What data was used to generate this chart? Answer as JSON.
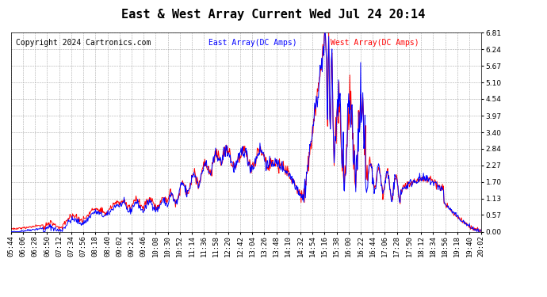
{
  "title": "East & West Array Current Wed Jul 24 20:14",
  "copyright": "Copyright 2024 Cartronics.com",
  "legend_east": "East Array(DC Amps)",
  "legend_west": "West Array(DC Amps)",
  "east_color": "blue",
  "west_color": "red",
  "bg_color": "#ffffff",
  "grid_color": "#aaaaaa",
  "ylim": [
    0.0,
    6.81
  ],
  "yticks": [
    0.0,
    0.57,
    1.13,
    1.7,
    2.27,
    2.84,
    3.4,
    3.97,
    4.54,
    5.1,
    5.67,
    6.24,
    6.81
  ],
  "xtick_labels": [
    "05:44",
    "06:06",
    "06:28",
    "06:50",
    "07:12",
    "07:34",
    "07:56",
    "08:18",
    "08:40",
    "09:02",
    "09:24",
    "09:46",
    "10:08",
    "10:30",
    "10:52",
    "11:14",
    "11:36",
    "11:58",
    "12:20",
    "12:42",
    "13:04",
    "13:26",
    "13:48",
    "14:10",
    "14:32",
    "14:54",
    "15:16",
    "15:38",
    "16:00",
    "16:22",
    "16:44",
    "17:06",
    "17:28",
    "17:50",
    "18:12",
    "18:34",
    "18:56",
    "19:18",
    "19:40",
    "20:02"
  ],
  "title_fontsize": 11,
  "label_fontsize": 7,
  "axis_fontsize": 6.5,
  "copyright_fontsize": 7
}
